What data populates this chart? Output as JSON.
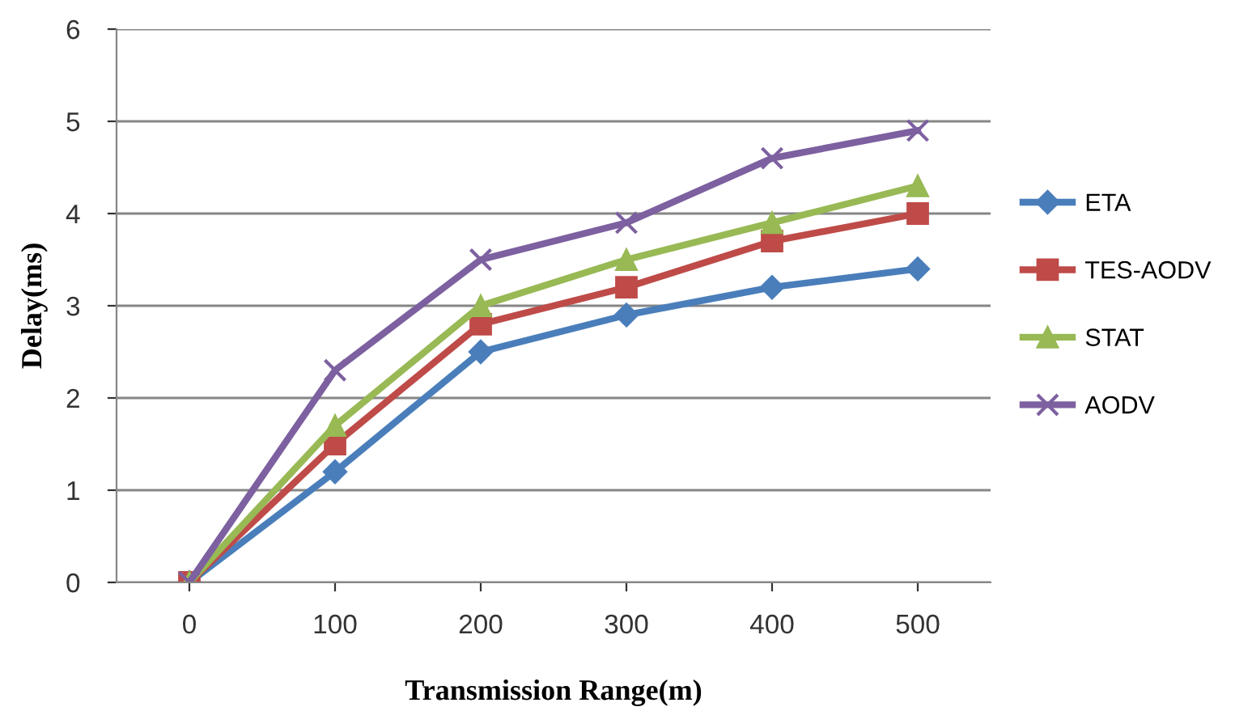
{
  "chart_data": {
    "type": "line",
    "xlabel": "Transmission Range(m)",
    "ylabel": "Delay(ms)",
    "categories": [
      "0",
      "100",
      "200",
      "300",
      "400",
      "500"
    ],
    "series": [
      {
        "name": "ETA",
        "color": "#4a7ebb",
        "marker": "diamond",
        "values": [
          0,
          1.2,
          2.5,
          2.9,
          3.2,
          3.4
        ]
      },
      {
        "name": "TES-AODV",
        "color": "#be4b48",
        "marker": "square",
        "values": [
          0,
          1.5,
          2.8,
          3.2,
          3.7,
          4.0
        ]
      },
      {
        "name": "STAT",
        "color": "#98b954",
        "marker": "triangle",
        "values": [
          0,
          1.7,
          3.0,
          3.5,
          3.9,
          4.3
        ]
      },
      {
        "name": "AODV",
        "color": "#7d60a0",
        "marker": "cross",
        "values": [
          0,
          2.3,
          3.5,
          3.9,
          4.6,
          4.9
        ]
      }
    ],
    "ylim": [
      0,
      6
    ],
    "yticks": [
      0,
      1,
      2,
      3,
      4,
      5,
      6
    ],
    "grid": "y",
    "legend": "right"
  }
}
